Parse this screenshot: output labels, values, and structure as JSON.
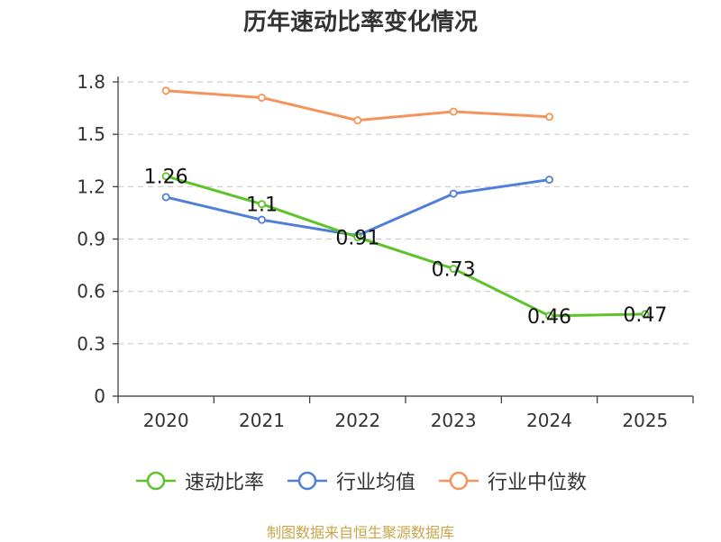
{
  "chart_data": {
    "type": "line",
    "title": "历年速动比率变化情况",
    "categories": [
      "2020",
      "2021",
      "2022",
      "2023",
      "2024",
      "2025"
    ],
    "ylim": [
      0,
      1.8
    ],
    "yticks": [
      0,
      0.3,
      0.6,
      0.9,
      1.2,
      1.5,
      1.8
    ],
    "ytick_labels": [
      "0",
      "0.3",
      "0.6",
      "0.9",
      "1.2",
      "1.5",
      "1.8"
    ],
    "grid": true,
    "legend_position": "bottom",
    "series": [
      {
        "name": "速动比率",
        "color": "#5ec229",
        "values": [
          1.26,
          1.1,
          0.91,
          0.73,
          0.46,
          0.47
        ],
        "labels": [
          "1.26",
          "1.1",
          "0.91",
          "0.73",
          "0.46",
          "0.47"
        ]
      },
      {
        "name": "行业均值",
        "color": "#4f7fd8",
        "values": [
          1.14,
          1.01,
          0.92,
          1.16,
          1.24,
          null
        ]
      },
      {
        "name": "行业中位数",
        "color": "#f4935a",
        "values": [
          1.75,
          1.71,
          1.58,
          1.63,
          1.6,
          null
        ]
      }
    ]
  },
  "source_text": "制图数据来自恒生聚源数据库"
}
